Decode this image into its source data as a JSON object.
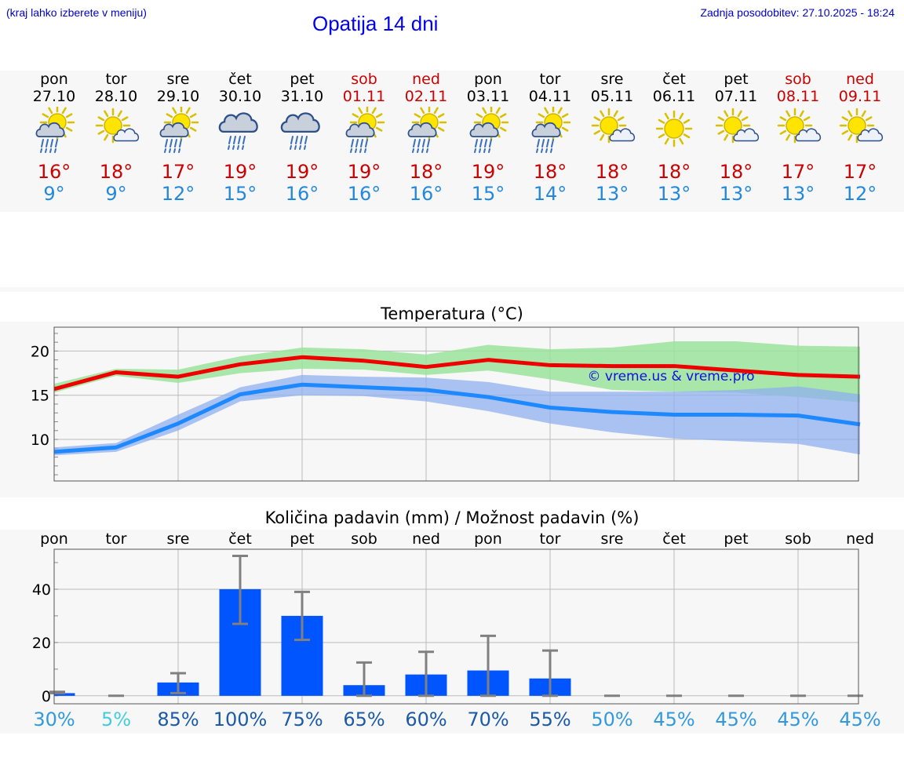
{
  "header": {
    "location_hint": "(kraj lahko izberete v meniju)",
    "title": "Opatija 14 dni",
    "updated": "Zadnja posodobitev: 27.10.2025 - 18:24"
  },
  "days": [
    {
      "name": "pon",
      "date": "27.10",
      "weekend": false,
      "icon": "sun-cloud-rain-icon",
      "tmax": "16°",
      "tmin": "9°"
    },
    {
      "name": "tor",
      "date": "28.10",
      "weekend": false,
      "icon": "sun-cloud-icon",
      "tmax": "18°",
      "tmin": "9°"
    },
    {
      "name": "sre",
      "date": "29.10",
      "weekend": false,
      "icon": "sun-cloud-rain-icon",
      "tmax": "17°",
      "tmin": "12°"
    },
    {
      "name": "čet",
      "date": "30.10",
      "weekend": false,
      "icon": "cloud-rain-icon",
      "tmax": "19°",
      "tmin": "15°"
    },
    {
      "name": "pet",
      "date": "31.10",
      "weekend": false,
      "icon": "cloud-rain-icon",
      "tmax": "19°",
      "tmin": "16°"
    },
    {
      "name": "sob",
      "date": "01.11",
      "weekend": true,
      "icon": "sun-cloud-rain-icon",
      "tmax": "19°",
      "tmin": "16°"
    },
    {
      "name": "ned",
      "date": "02.11",
      "weekend": true,
      "icon": "sun-cloud-rain-icon",
      "tmax": "18°",
      "tmin": "16°"
    },
    {
      "name": "pon",
      "date": "03.11",
      "weekend": false,
      "icon": "sun-cloud-rain-icon",
      "tmax": "19°",
      "tmin": "15°"
    },
    {
      "name": "tor",
      "date": "04.11",
      "weekend": false,
      "icon": "sun-cloud-rain-icon",
      "tmax": "18°",
      "tmin": "14°"
    },
    {
      "name": "sre",
      "date": "05.11",
      "weekend": false,
      "icon": "sun-cloud-icon",
      "tmax": "18°",
      "tmin": "13°"
    },
    {
      "name": "čet",
      "date": "06.11",
      "weekend": false,
      "icon": "sun-icon",
      "tmax": "18°",
      "tmin": "13°"
    },
    {
      "name": "pet",
      "date": "07.11",
      "weekend": false,
      "icon": "sun-cloud-icon",
      "tmax": "18°",
      "tmin": "13°"
    },
    {
      "name": "sob",
      "date": "08.11",
      "weekend": true,
      "icon": "sun-cloud-icon",
      "tmax": "17°",
      "tmin": "13°"
    },
    {
      "name": "ned",
      "date": "09.11",
      "weekend": true,
      "icon": "sun-cloud-icon",
      "tmax": "17°",
      "tmin": "12°"
    }
  ],
  "colors": {
    "max_line": "#ee0000",
    "max_band": "#9be39b",
    "min_line": "#1e88ff",
    "min_band": "#8fb0f0",
    "overlap_band": "#6fba9a",
    "bar": "#0055ff",
    "errorbar": "#808080",
    "grid": "#bbbbbb",
    "weekend": "#cc0000",
    "tmin": "#2288dd"
  },
  "chart_data": [
    {
      "type": "line",
      "title": "Temperatura (°C)",
      "watermark": "© vreme.us & vreme.pro",
      "categories": [
        "27.10",
        "28.10",
        "29.10",
        "30.10",
        "31.10",
        "01.11",
        "02.11",
        "03.11",
        "04.11",
        "05.11",
        "06.11",
        "07.11",
        "08.11",
        "09.11"
      ],
      "ylim": [
        5.3,
        22.7
      ],
      "yticks": [
        10,
        15,
        20
      ],
      "grid": true,
      "series": [
        {
          "values": [
            15.7,
            17.6,
            17.1,
            18.5,
            19.3,
            18.9,
            18.2,
            19.0,
            18.4,
            18.3,
            18.3,
            17.8,
            17.3,
            17.1
          ],
          "band_low": [
            15.3,
            17.2,
            16.4,
            17.5,
            18.0,
            17.9,
            17.3,
            17.8,
            16.8,
            15.6,
            15.4,
            15.3,
            14.8,
            14.2
          ],
          "band_high": [
            16.3,
            18.0,
            17.9,
            19.4,
            20.4,
            20.2,
            19.6,
            20.7,
            20.2,
            20.4,
            21.1,
            21.1,
            20.6,
            20.5
          ]
        },
        {
          "values": [
            8.6,
            9.1,
            11.8,
            15.1,
            16.2,
            15.9,
            15.6,
            14.8,
            13.6,
            13.1,
            12.8,
            12.8,
            12.7,
            11.7
          ],
          "band_low": [
            8.2,
            8.6,
            11.0,
            14.3,
            15.0,
            14.9,
            14.3,
            13.2,
            11.8,
            10.8,
            10.1,
            9.8,
            9.5,
            8.3
          ],
          "band_high": [
            9.1,
            9.6,
            12.8,
            15.9,
            17.3,
            17.1,
            17.0,
            16.5,
            15.4,
            15.4,
            15.4,
            15.6,
            16.0,
            15.1
          ]
        }
      ]
    },
    {
      "type": "bar",
      "title": "Količina padavin (mm) / Možnost padavin (%)",
      "categories": [
        "pon",
        "tor",
        "sre",
        "čet",
        "pet",
        "sob",
        "ned",
        "pon",
        "tor",
        "sre",
        "čet",
        "pet",
        "sob",
        "ned"
      ],
      "ylim": [
        -3,
        55
      ],
      "yticks": [
        0,
        20,
        40
      ],
      "grid": true,
      "values": [
        1,
        0,
        5,
        40,
        30,
        4,
        8,
        9.5,
        6.5,
        0,
        0,
        0,
        0,
        0
      ],
      "err_low": [
        1,
        0,
        1,
        27,
        21,
        0,
        0,
        0,
        0,
        0,
        0,
        0,
        0,
        0
      ],
      "err_high": [
        1.5,
        0,
        8.5,
        52.5,
        39,
        12.5,
        16.5,
        22.5,
        17,
        0,
        0,
        0,
        0,
        0
      ],
      "probability": [
        "30%",
        "5%",
        "85%",
        "100%",
        "75%",
        "65%",
        "60%",
        "70%",
        "55%",
        "50%",
        "45%",
        "45%",
        "45%",
        "45%"
      ],
      "probability_values": [
        30,
        5,
        85,
        100,
        75,
        65,
        60,
        70,
        55,
        50,
        45,
        45,
        45,
        45
      ]
    }
  ]
}
